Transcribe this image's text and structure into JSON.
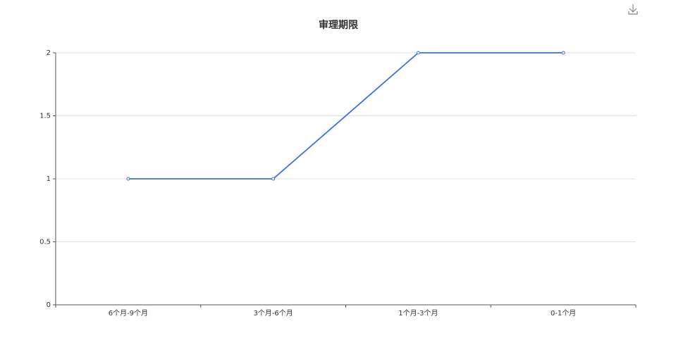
{
  "chart_data": {
    "type": "line",
    "title": "审理期限",
    "categories": [
      "6个月-9个月",
      "3个月-6个月",
      "1个月-3个月",
      "0-1个月"
    ],
    "values": [
      1,
      1,
      2,
      2
    ],
    "color": "#3d6fe3",
    "ylim": [
      0,
      2
    ],
    "yticks": [
      0,
      0.5,
      1,
      1.5,
      2
    ],
    "grid": true
  }
}
